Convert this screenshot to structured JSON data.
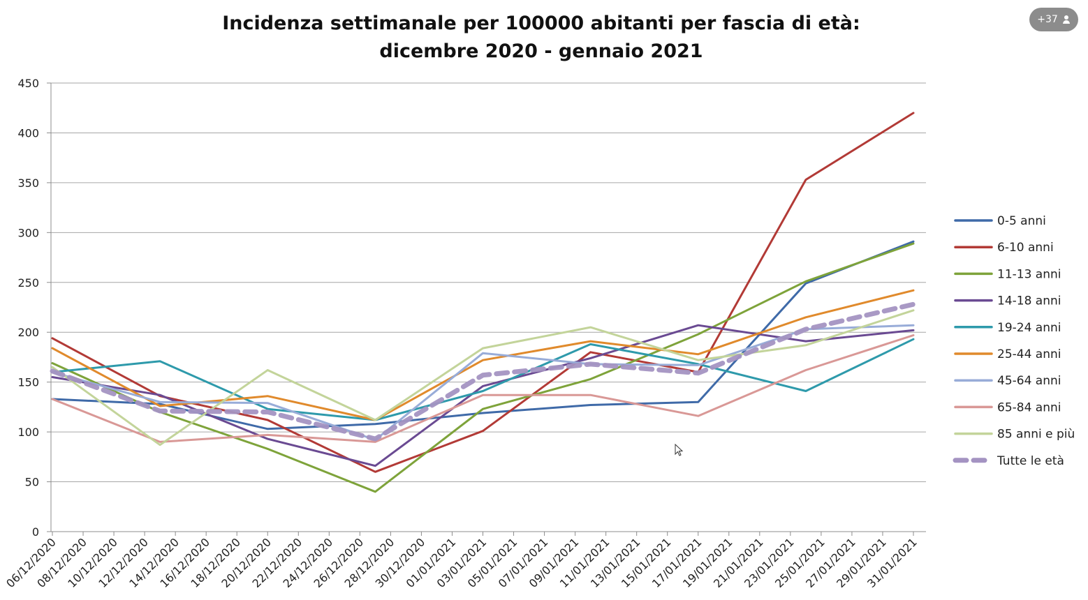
{
  "overlay": {
    "participants_badge": "+37",
    "badge_icon": "person-icon",
    "cursor_icon": "mouse-pointer-icon"
  },
  "chart_data": {
    "type": "line",
    "title_lines": [
      "Incidenza settimanale per 100000 abitanti per fascia di età:",
      "dicembre 2020 - gennaio 2021"
    ],
    "ylim": [
      0,
      450
    ],
    "yticks": [
      0,
      50,
      100,
      150,
      200,
      250,
      300,
      350,
      400,
      450
    ],
    "grid": "horizontal",
    "legend_position": "right",
    "x_tick_labels": [
      "06/12/2020",
      "08/12/2020",
      "10/12/2020",
      "12/12/2020",
      "14/12/2020",
      "16/12/2020",
      "18/12/2020",
      "20/12/2020",
      "22/12/2020",
      "24/12/2020",
      "26/12/2020",
      "28/12/2020",
      "30/12/2020",
      "01/01/2021",
      "03/01/2021",
      "05/01/2021",
      "07/01/2021",
      "09/01/2021",
      "11/01/2021",
      "13/01/2021",
      "15/01/2021",
      "17/01/2021",
      "19/01/2021",
      "21/01/2021",
      "23/01/2021",
      "25/01/2021",
      "27/01/2021",
      "29/01/2021",
      "31/01/2021"
    ],
    "x": [
      "06/12/2020",
      "13/12/2020",
      "20/12/2020",
      "27/12/2020",
      "03/01/2021",
      "10/01/2021",
      "17/01/2021",
      "24/01/2021",
      "31/01/2021"
    ],
    "series": [
      {
        "name": "0-5 anni",
        "color": "#3f6aa8",
        "dashed": false,
        "values": [
          133,
          128,
          103,
          108,
          119,
          127,
          130,
          249,
          291
        ]
      },
      {
        "name": "6-10 anni",
        "color": "#b23a36",
        "dashed": false,
        "values": [
          194,
          136,
          112,
          60,
          101,
          180,
          160,
          353,
          420
        ]
      },
      {
        "name": "11-13 anni",
        "color": "#7ea33a",
        "dashed": false,
        "values": [
          169,
          120,
          83,
          40,
          123,
          153,
          198,
          251,
          289
        ]
      },
      {
        "name": "14-18 anni",
        "color": "#6a4a92",
        "dashed": false,
        "values": [
          155,
          137,
          93,
          66,
          146,
          174,
          207,
          191,
          202
        ]
      },
      {
        "name": "19-24 anni",
        "color": "#2e9aab",
        "dashed": false,
        "values": [
          160,
          171,
          123,
          112,
          141,
          188,
          168,
          141,
          193
        ]
      },
      {
        "name": "25-44 anni",
        "color": "#e08a2c",
        "dashed": false,
        "values": [
          184,
          126,
          136,
          112,
          172,
          191,
          178,
          215,
          242
        ]
      },
      {
        "name": "45-64 anni",
        "color": "#98acd8",
        "dashed": false,
        "values": [
          160,
          130,
          129,
          92,
          179,
          168,
          167,
          203,
          207
        ]
      },
      {
        "name": "65-84 anni",
        "color": "#d99896",
        "dashed": false,
        "values": [
          133,
          90,
          97,
          90,
          137,
          137,
          116,
          162,
          197
        ]
      },
      {
        "name": "85 anni e più",
        "color": "#c3d49a",
        "dashed": false,
        "values": [
          165,
          87,
          162,
          112,
          184,
          205,
          172,
          187,
          222
        ]
      },
      {
        "name": "Tutte le età",
        "color": "#a493c2",
        "dashed": true,
        "values": [
          161,
          121,
          120,
          93,
          157,
          168,
          159,
          203,
          228
        ]
      }
    ]
  }
}
